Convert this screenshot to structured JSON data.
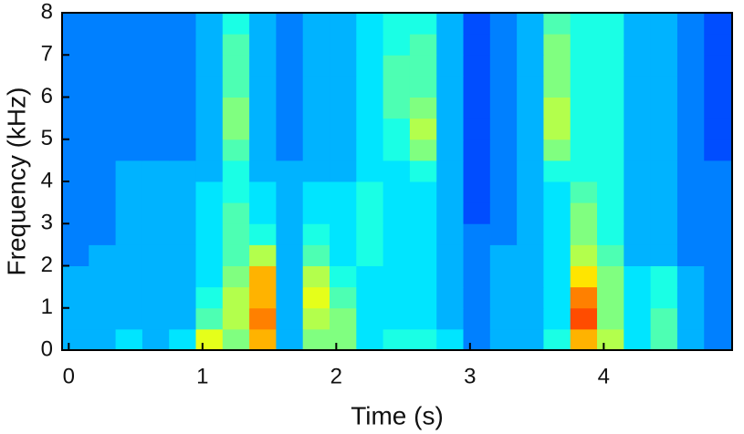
{
  "chart_data": {
    "type": "heatmap",
    "colormap": "jet",
    "xlabel": "Time (s)",
    "ylabel": "Frequency (kHz)",
    "xlim": [
      -0.05,
      4.96
    ],
    "ylim": [
      0,
      8
    ],
    "zlim": [
      0,
      10
    ],
    "xticks": [
      0,
      1,
      2,
      3,
      4
    ],
    "yticks": [
      0,
      1,
      2,
      3,
      4,
      5,
      6,
      7,
      8
    ],
    "xbins": [
      -0.05,
      0.15,
      0.35,
      0.55,
      0.75,
      0.95,
      1.15,
      1.35,
      1.55,
      1.75,
      1.95,
      2.15,
      2.35,
      2.55,
      2.75,
      2.95,
      3.15,
      3.35,
      3.55,
      3.75,
      3.95,
      4.15,
      4.35,
      4.55,
      4.75,
      4.96
    ],
    "ybins": [
      0,
      0.5,
      1,
      1.5,
      2,
      2.5,
      3,
      3.5,
      4,
      4.5,
      5,
      5.5,
      6,
      6.5,
      7,
      7.5,
      8
    ],
    "z": [
      [
        3,
        3,
        3.5,
        3,
        3.5,
        6,
        5,
        7,
        3,
        5,
        5,
        3.5,
        4,
        4,
        3.5,
        2.5,
        3,
        3,
        4,
        7,
        5.5,
        3.5,
        4.5,
        3,
        2.5
      ],
      [
        3,
        3,
        3,
        3,
        3,
        4.5,
        5.5,
        7.5,
        3,
        5.5,
        5,
        3.5,
        3.5,
        3.5,
        3,
        2.5,
        3,
        3,
        3.5,
        8,
        5,
        3.5,
        4.5,
        3,
        2.5
      ],
      [
        3,
        3,
        3,
        3,
        3,
        4,
        5.5,
        7,
        3,
        6,
        4.5,
        3.5,
        3.5,
        3.5,
        3,
        2.5,
        3,
        3,
        3.5,
        7.5,
        5,
        3.5,
        4,
        3,
        2.5
      ],
      [
        3,
        3,
        3,
        3,
        3,
        3.5,
        5,
        7,
        3,
        5.5,
        4,
        3.5,
        3.5,
        3.5,
        3,
        2.5,
        3,
        3,
        3.5,
        6.5,
        5,
        3.5,
        4,
        3,
        2.5
      ],
      [
        2.5,
        3,
        3,
        3,
        3,
        3.5,
        4.5,
        5.5,
        3,
        4.5,
        3.5,
        4,
        3.5,
        3.5,
        3,
        2.5,
        3,
        3,
        3.5,
        5.5,
        4.5,
        3,
        3,
        2.5,
        2.5
      ],
      [
        2.5,
        2.5,
        3,
        3,
        3,
        3.5,
        4.5,
        4,
        3,
        4,
        3.5,
        4,
        3.5,
        3.5,
        3,
        2.5,
        2.5,
        3,
        3.5,
        5,
        4,
        3,
        3,
        2.5,
        2.5
      ],
      [
        2.5,
        2.5,
        3,
        3,
        3,
        3.5,
        4.5,
        3.5,
        3,
        3.5,
        3.5,
        4,
        3.5,
        3.5,
        3,
        2,
        2.5,
        3,
        3.5,
        5,
        4,
        3,
        3,
        2.5,
        2.5
      ],
      [
        2.5,
        2.5,
        3,
        3,
        3,
        3.5,
        4,
        3.5,
        3,
        3.5,
        3.5,
        4,
        3.5,
        3.5,
        3,
        2,
        2.5,
        3,
        3.5,
        4.5,
        4,
        3,
        3,
        2.5,
        2.5
      ],
      [
        2.5,
        2.5,
        3,
        3,
        3,
        3,
        4,
        3,
        3,
        3,
        3,
        3.5,
        3.5,
        4,
        3,
        2,
        2.5,
        3,
        4,
        4,
        4,
        3,
        3,
        2.5,
        2.5
      ],
      [
        2.5,
        2.5,
        2.5,
        2.5,
        2.5,
        3,
        4.5,
        3,
        2.5,
        3,
        3,
        3.5,
        4,
        5,
        3,
        2,
        2.5,
        3,
        5,
        4,
        4,
        3,
        3,
        2.5,
        2
      ],
      [
        2.5,
        2.5,
        2.5,
        2.5,
        2.5,
        3,
        5,
        3,
        2.5,
        3,
        3,
        3.5,
        4,
        5.5,
        3,
        2,
        2.5,
        3,
        5.5,
        4,
        4,
        3,
        3,
        2.5,
        2
      ],
      [
        2.5,
        2.5,
        2.5,
        2.5,
        2.5,
        3,
        5,
        3,
        2.5,
        3,
        3,
        3.5,
        4.5,
        5,
        3,
        2,
        2.5,
        3,
        5.5,
        4,
        4,
        3,
        3,
        2.5,
        2
      ],
      [
        2.5,
        2.5,
        2.5,
        2.5,
        2.5,
        3,
        4.5,
        3,
        2.5,
        3,
        3,
        3.5,
        4.5,
        4.5,
        3,
        2,
        2.5,
        3,
        5,
        4,
        4,
        3,
        3,
        2.5,
        2
      ],
      [
        2.5,
        2.5,
        2.5,
        2.5,
        2.5,
        3,
        4.5,
        3,
        2.5,
        3,
        3,
        3.5,
        4.5,
        4.5,
        3,
        2,
        2.5,
        3,
        5,
        4,
        4,
        3,
        3,
        2.5,
        2
      ],
      [
        2.5,
        2.5,
        2.5,
        2.5,
        2.5,
        3,
        4.5,
        3,
        2.5,
        3,
        3,
        3.5,
        4,
        4.5,
        3,
        2,
        2.5,
        3,
        5,
        4,
        4,
        3,
        3,
        2.5,
        2
      ],
      [
        2.5,
        2.5,
        2.5,
        2.5,
        2.5,
        3,
        4,
        3,
        2.5,
        3,
        3,
        3.5,
        4,
        4,
        3,
        2,
        2.5,
        3,
        4.5,
        4,
        4,
        3,
        3,
        2.5,
        2
      ]
    ]
  }
}
